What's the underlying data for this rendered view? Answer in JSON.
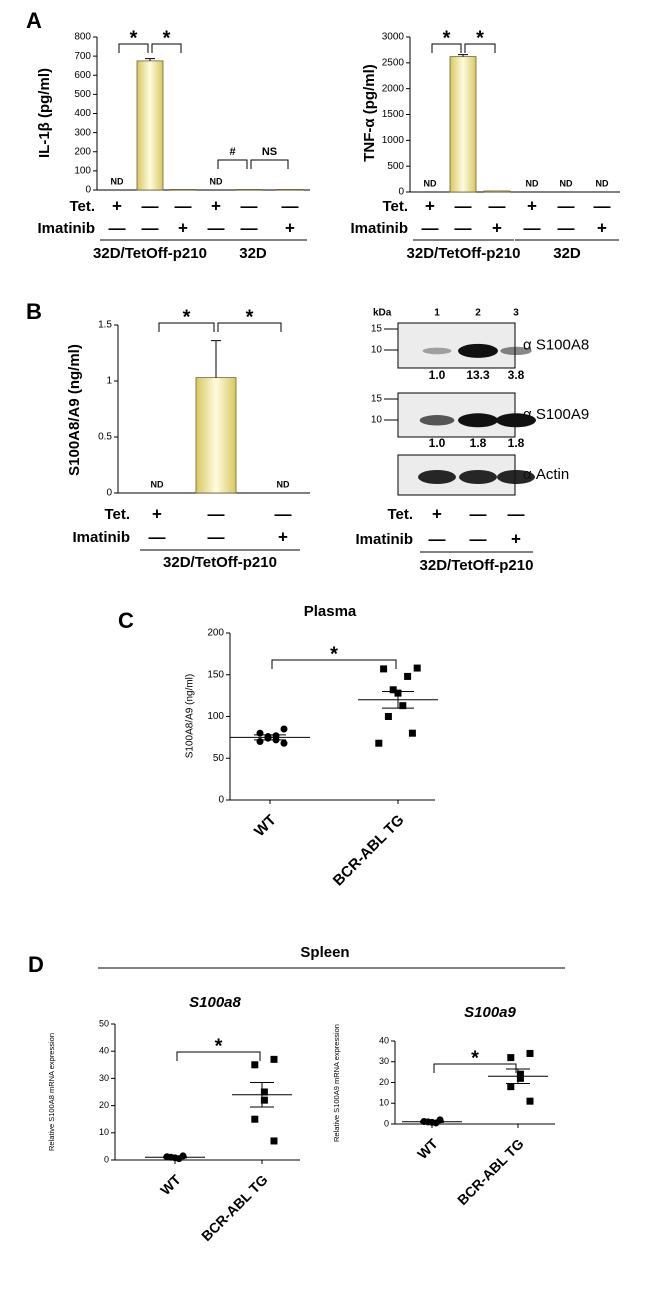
{
  "panel_labels": [
    "A",
    "B",
    "C",
    "D"
  ],
  "section_title": "Spleen",
  "chart_data": [
    {
      "type": "bar",
      "y_label": "IL-1β (pg/ml)",
      "ylim": [
        0,
        800
      ],
      "yticks": [
        0,
        100,
        200,
        300,
        400,
        500,
        600,
        700,
        800
      ],
      "color": "#d8c860",
      "values": [
        null,
        675,
        3,
        null,
        3,
        3
      ],
      "errors": [
        null,
        12,
        null,
        null,
        null,
        null
      ],
      "value_labels": [
        "ND",
        null,
        null,
        "ND",
        null,
        null
      ],
      "condition_rows": [
        {
          "name": "Tet.",
          "marks": [
            "+",
            "—",
            "—",
            "+",
            "—",
            "—"
          ]
        },
        {
          "name": "Imatinib",
          "marks": [
            "—",
            "—",
            "+",
            "—",
            "—",
            "+"
          ]
        }
      ],
      "groups": [
        {
          "name": "32D/TetOff-p210",
          "span": [
            0,
            2
          ]
        },
        {
          "name": "32D",
          "span": [
            3,
            5
          ]
        }
      ],
      "comparisons": [
        {
          "label": "*",
          "pair": [
            0,
            1
          ]
        },
        {
          "label": "*",
          "pair": [
            1,
            2
          ]
        },
        {
          "label": "#",
          "pair": [
            3,
            4
          ]
        },
        {
          "label": "NS",
          "pair": [
            4,
            5
          ]
        }
      ]
    },
    {
      "type": "bar",
      "y_label": "TNF-α (pg/ml)",
      "ylim": [
        0,
        3000
      ],
      "yticks": [
        0,
        500,
        1000,
        1500,
        2000,
        2500,
        3000
      ],
      "color": "#d8c860",
      "values": [
        null,
        2620,
        20,
        null,
        null,
        null
      ],
      "errors": [
        null,
        40,
        null,
        null,
        null,
        null
      ],
      "value_labels": [
        "ND",
        null,
        null,
        "ND",
        "ND",
        "ND"
      ],
      "condition_rows": [
        {
          "name": "Tet.",
          "marks": [
            "+",
            "—",
            "—",
            "+",
            "—",
            "—"
          ]
        },
        {
          "name": "Imatinib",
          "marks": [
            "—",
            "—",
            "+",
            "—",
            "—",
            "+"
          ]
        }
      ],
      "groups": [
        {
          "name": "32D/TetOff-p210",
          "span": [
            0,
            2
          ]
        },
        {
          "name": "32D",
          "span": [
            3,
            5
          ]
        }
      ],
      "comparisons": [
        {
          "label": "*",
          "pair": [
            0,
            1
          ]
        },
        {
          "label": "*",
          "pair": [
            1,
            2
          ]
        }
      ]
    },
    {
      "type": "bar",
      "y_label": "S100A8/A9 (ng/ml)",
      "ylim": [
        0,
        1.5
      ],
      "yticks": [
        0,
        0.5,
        1,
        1.5
      ],
      "color": "#d8c860",
      "values": [
        null,
        1.03,
        null
      ],
      "errors": [
        null,
        0.33,
        null
      ],
      "value_labels": [
        "ND",
        null,
        "ND"
      ],
      "condition_rows": [
        {
          "name": "Tet.",
          "marks": [
            "+",
            "—",
            "—"
          ]
        },
        {
          "name": "Imatinib",
          "marks": [
            "—",
            "—",
            "+"
          ]
        }
      ],
      "groups": [
        {
          "name": "32D/TetOff-p210",
          "span": [
            0,
            2
          ]
        }
      ],
      "comparisons": [
        {
          "label": "*",
          "pair": [
            0,
            1
          ]
        },
        {
          "label": "*",
          "pair": [
            1,
            2
          ]
        }
      ]
    },
    {
      "type": "blot",
      "unit_label": "kDa",
      "lanes": [
        "1",
        "2",
        "3"
      ],
      "blots": [
        {
          "name": "α S100A8",
          "markers": [
            15,
            10
          ],
          "values": [
            1.0,
            13.3,
            3.8
          ],
          "value_labels": [
            "1.0",
            "13.3",
            "3.8"
          ]
        },
        {
          "name": "α S100A9",
          "markers": [
            15,
            10
          ],
          "values": [
            1.0,
            1.8,
            1.8
          ],
          "value_labels": [
            "1.0",
            "1.8",
            "1.8"
          ]
        },
        {
          "name": "α Actin"
        }
      ],
      "condition_rows": [
        {
          "name": "Tet.",
          "marks": [
            "+",
            "—",
            "—"
          ]
        },
        {
          "name": "Imatinib",
          "marks": [
            "—",
            "—",
            "+"
          ]
        }
      ],
      "groups": [
        {
          "name": "32D/TetOff-p210",
          "span": [
            0,
            2
          ]
        }
      ]
    },
    {
      "type": "dot",
      "title": "Plasma",
      "y_label": "S100A8/A9 (ng/ml)",
      "ylim": [
        0,
        200
      ],
      "yticks": [
        0,
        50,
        100,
        150,
        200
      ],
      "color": "#000000",
      "categories": [
        "WT",
        "BCR-ABL TG"
      ],
      "groups": [
        {
          "marker": "circle",
          "values": [
            85,
            80,
            77,
            76,
            74,
            72,
            70,
            68
          ],
          "mean": 75,
          "sem": 3
        },
        {
          "marker": "square",
          "values": [
            158,
            157,
            148,
            132,
            128,
            113,
            100,
            80,
            68
          ],
          "mean": 120,
          "sem": 10
        }
      ],
      "comparisons": [
        {
          "label": "*",
          "pair": [
            0,
            1
          ]
        }
      ]
    },
    {
      "type": "dot",
      "title": "S100a8",
      "y_label": "Relative S100A8 mRNA expression",
      "ylim": [
        0,
        50
      ],
      "yticks": [
        0,
        10,
        20,
        30,
        40,
        50
      ],
      "color": "#000000",
      "categories": [
        "WT",
        "BCR-ABL TG"
      ],
      "groups": [
        {
          "marker": "circle",
          "values": [
            1.5,
            1,
            0.8,
            0.5,
            1.2
          ],
          "mean": 1,
          "sem": 0.2
        },
        {
          "marker": "square",
          "values": [
            37,
            35,
            25,
            22,
            15,
            7
          ],
          "mean": 24,
          "sem": 4.5
        }
      ],
      "comparisons": [
        {
          "label": "*",
          "pair": [
            0,
            1
          ]
        }
      ]
    },
    {
      "type": "dot",
      "title": "S100a9",
      "y_label": "Relative S100A9 mRNA expression",
      "ylim": [
        0,
        40
      ],
      "yticks": [
        0,
        10,
        20,
        30,
        40
      ],
      "color": "#000000",
      "categories": [
        "WT",
        "BCR-ABL TG"
      ],
      "groups": [
        {
          "marker": "circle",
          "values": [
            2,
            1,
            0.8,
            0.5,
            1.2
          ],
          "mean": 1.1,
          "sem": 0.3
        },
        {
          "marker": "square",
          "values": [
            34,
            32,
            24,
            22,
            18,
            11
          ],
          "mean": 23,
          "sem": 3.5
        }
      ],
      "comparisons": [
        {
          "label": "*",
          "pair": [
            0,
            1
          ]
        }
      ]
    }
  ]
}
